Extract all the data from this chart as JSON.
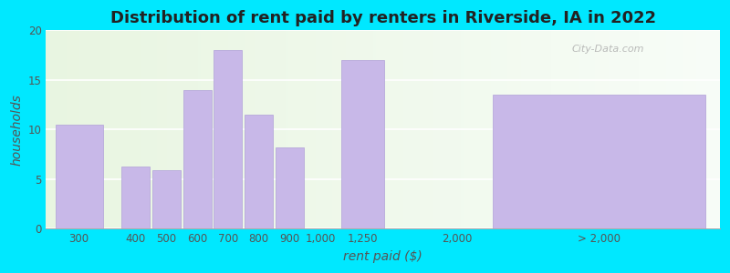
{
  "title": "Distribution of rent paid by renters in Riverside, IA in 2022",
  "xlabel": "rent paid ($)",
  "ylabel": "households",
  "bar_labels": [
    "300",
    "400",
    "500",
    "600",
    "700",
    "800",
    "900",
    "1,000",
    "1,250",
    "2,000",
    "> 2,000"
  ],
  "bar_values": [
    10.5,
    6.3,
    5.9,
    14.0,
    18.0,
    11.5,
    8.2,
    0,
    17.0,
    0,
    13.5
  ],
  "bar_color": "#c8b8e8",
  "bar_edge_color": "#b0a0d8",
  "ylim": [
    0,
    20
  ],
  "yticks": [
    0,
    5,
    10,
    15,
    20
  ],
  "outer_bg": "#00e8ff",
  "watermark": "City-Data.com",
  "title_fontsize": 13,
  "axis_label_fontsize": 10,
  "tick_fontsize": 8.5
}
